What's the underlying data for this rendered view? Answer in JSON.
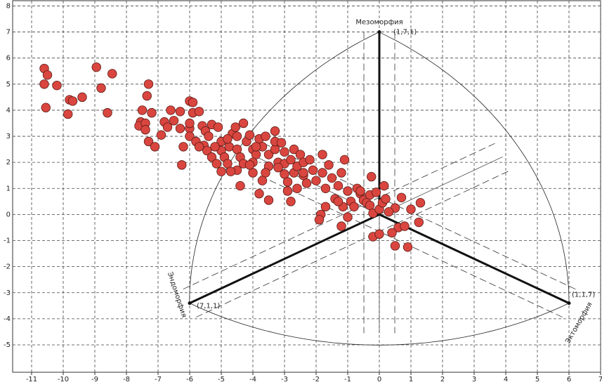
{
  "chart_data": {
    "type": "scatter",
    "xlim": [
      -11.6,
      7.0
    ],
    "ylim": [
      -6.05,
      8.2
    ],
    "xticks": [
      -11,
      -10,
      -9,
      -8,
      -7,
      -6,
      -5,
      -4,
      -3,
      -2,
      -1,
      0,
      1,
      2,
      3,
      4,
      5,
      6,
      7
    ],
    "yticks": [
      -5,
      -4,
      -3,
      -2,
      -1,
      0,
      1,
      2,
      3,
      4,
      5,
      6,
      7,
      8
    ],
    "grid": true,
    "color": "#d9463f",
    "vertices": [
      {
        "name": "Мезоморфия",
        "label": "(1,7,1)",
        "x": 0,
        "y": 7
      },
      {
        "name": "Эндоморфия",
        "label": "(7,1,1)",
        "x": -6,
        "y": -3.4
      },
      {
        "name": "Эктоморфия",
        "label": "(1,1,7)",
        "x": 6,
        "y": -3.4
      }
    ],
    "x": [
      -10.6,
      -10.5,
      -10.6,
      -10.2,
      -10.55,
      -9.8,
      -9.7,
      -9.85,
      -9.4,
      -8.95,
      -8.45,
      -8.8,
      -8.6,
      -7.55,
      -7.6,
      -7.4,
      -7.3,
      -7.35,
      -7.5,
      -7.2,
      -7.4,
      -7.3,
      -7.1,
      -6.9,
      -6.8,
      -6.7,
      -6.6,
      -6.3,
      -6.3,
      -6.0,
      -5.9,
      -6.0,
      -5.9,
      -5.7,
      -6.0,
      -6.2,
      -6.25,
      -5.8,
      -5.6,
      -5.5,
      -5.4,
      -5.55,
      -5.45,
      -5.3,
      -5.7,
      -5.3,
      -5.1,
      -5.0,
      -5.0,
      -4.9,
      -5.15,
      -4.8,
      -4.75,
      -4.65,
      -4.55,
      -4.3,
      -4.5,
      -4.4,
      -4.3,
      -4.5,
      -4.7,
      -4.2,
      -4.1,
      -4.0,
      -3.9,
      -4.0,
      -4.0,
      -3.8,
      -3.7,
      -3.6,
      -3.5,
      -3.5,
      -3.6,
      -3.3,
      -3.2,
      -3.3,
      -3.1,
      -3.0,
      -3.0,
      -3.0,
      -2.9,
      -2.8,
      -2.7,
      -2.7,
      -2.6,
      -2.5,
      -2.4,
      -2.4,
      -2.3,
      -2.2,
      -2.1,
      -2.0,
      -1.8,
      -1.8,
      -1.7,
      -1.6,
      -1.5,
      -1.3,
      -1.4,
      -1.2,
      -1.1,
      -1.0,
      -1.15,
      -0.9,
      -0.8,
      -0.7,
      -0.6,
      -0.5,
      -0.4,
      -0.3,
      -0.3,
      -0.25,
      -0.2,
      -0.1,
      0.0,
      0.1,
      0.15,
      0.2,
      -3.3,
      -3.5,
      -3.8,
      -2.8,
      -2.4,
      -1.7,
      -1.85,
      -1.9,
      -1.2,
      -1.0,
      -4.4,
      -4.1,
      -6.0,
      -5.0,
      -3.9,
      -4.5,
      0.5,
      0.3,
      0.7,
      0.6,
      0.8,
      1.0,
      1.3,
      1.25,
      0.5,
      0.9,
      0.4,
      -0.2,
      0.0,
      -0.6,
      -1.3,
      -2.6,
      -2.9,
      -3.2,
      -3.7,
      -4.8,
      -5.2,
      -6.5
    ],
    "values": [
      5.6,
      5.35,
      5.0,
      4.95,
      4.1,
      4.4,
      4.35,
      3.85,
      4.5,
      5.65,
      5.4,
      4.85,
      3.9,
      3.55,
      3.4,
      3.5,
      5.0,
      4.55,
      4.0,
      3.9,
      3.25,
      2.8,
      2.6,
      3.05,
      3.55,
      3.35,
      4.0,
      3.95,
      3.3,
      3.3,
      3.9,
      4.35,
      4.3,
      3.95,
      3.0,
      2.6,
      1.9,
      2.8,
      3.4,
      3.2,
      3.0,
      2.65,
      2.45,
      2.2,
      2.6,
      3.45,
      3.35,
      2.8,
      2.45,
      2.2,
      1.95,
      1.95,
      2.6,
      3.1,
      3.35,
      3.5,
      2.5,
      2.2,
      1.95,
      1.7,
      1.65,
      2.8,
      3.05,
      2.5,
      2.3,
      2.0,
      1.6,
      2.9,
      2.6,
      3.0,
      2.3,
      1.85,
      1.6,
      2.5,
      2.0,
      2.8,
      2.75,
      2.4,
      1.95,
      1.55,
      1.25,
      2.1,
      2.5,
      1.6,
      1.85,
      2.3,
      2.0,
      1.5,
      1.2,
      2.1,
      1.7,
      1.3,
      2.3,
      1.6,
      1.0,
      1.9,
      1.4,
      1.1,
      0.6,
      1.6,
      2.1,
      0.9,
      0.3,
      0.5,
      0.3,
      1.0,
      0.8,
      0.55,
      0.45,
      0.75,
      0.35,
      1.45,
      0.05,
      0.85,
      0.2,
      0.45,
      1.1,
      0.6,
      3.2,
      0.55,
      0.8,
      0.5,
      1.6,
      0.3,
      0.0,
      -0.2,
      -0.45,
      -0.1,
      1.1,
      1.9,
      3.5,
      1.65,
      2.6,
      3.0,
      0.25,
      0.1,
      0.65,
      -0.5,
      -0.45,
      0.2,
      0.45,
      -0.3,
      -1.2,
      -1.25,
      -0.7,
      -0.85,
      -0.75,
      0.9,
      0.5,
      1.0,
      0.9,
      1.8,
      1.3,
      2.9,
      2.6,
      3.6
    ]
  }
}
